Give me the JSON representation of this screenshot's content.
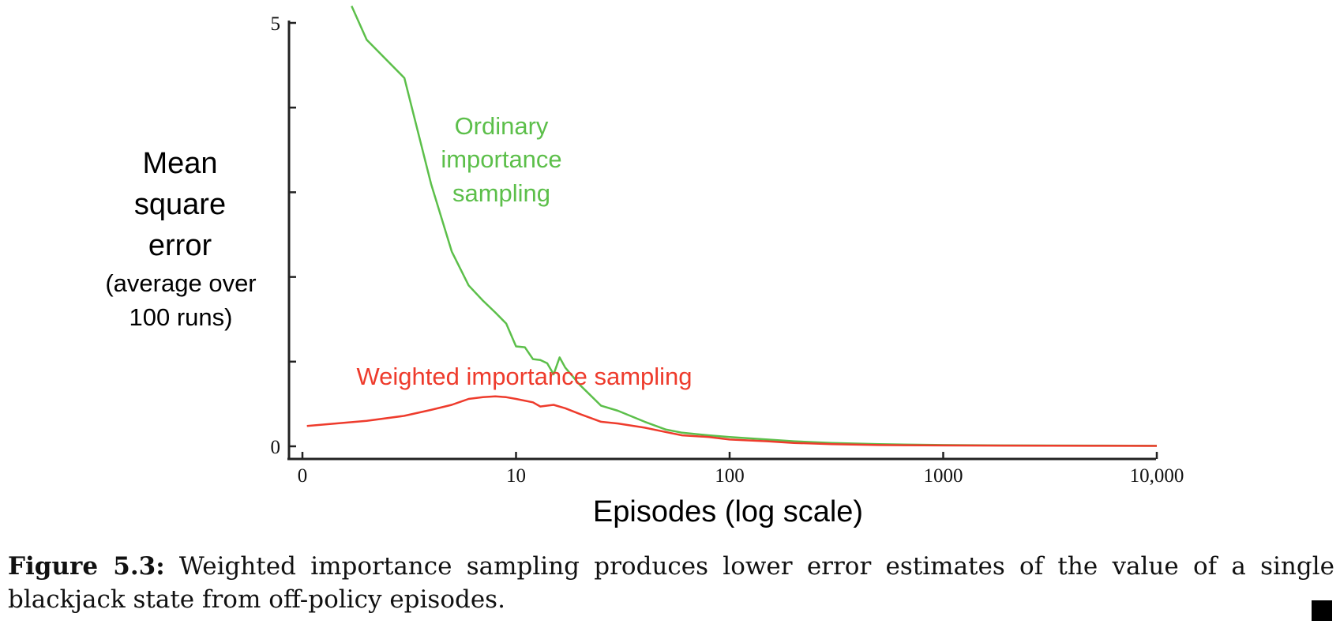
{
  "chart_data": {
    "type": "line",
    "xlabel": "Episodes (log scale)",
    "ylabel_lines": [
      "Mean",
      "square",
      "error"
    ],
    "ylabel_sub_lines": [
      "(average over",
      "100 runs)"
    ],
    "x_scale": "log",
    "x_ticks": [
      1,
      10,
      100,
      1000,
      10000
    ],
    "x_tick_labels": [
      "0",
      "10",
      "100",
      "1000",
      "10,000"
    ],
    "y_ticks": [
      0,
      1,
      2,
      3,
      4,
      5
    ],
    "y_tick_labels": [
      "0",
      "5"
    ],
    "ylim": [
      0,
      5
    ],
    "xlim": [
      1,
      10000
    ],
    "grid": false,
    "series": [
      {
        "name_lines": [
          "Ordinary",
          "importance",
          "sampling"
        ],
        "color": "#5cbf4a",
        "points": [
          [
            1.7,
            5.2
          ],
          [
            2,
            4.8
          ],
          [
            3,
            4.35
          ],
          [
            4,
            3.1
          ],
          [
            5,
            2.3
          ],
          [
            6,
            1.9
          ],
          [
            7,
            1.72
          ],
          [
            8,
            1.58
          ],
          [
            9,
            1.45
          ],
          [
            10,
            1.18
          ],
          [
            11,
            1.17
          ],
          [
            12,
            1.03
          ],
          [
            13,
            1.02
          ],
          [
            14,
            0.98
          ],
          [
            15,
            0.85
          ],
          [
            16,
            1.05
          ],
          [
            17,
            0.93
          ],
          [
            20,
            0.72
          ],
          [
            25,
            0.48
          ],
          [
            30,
            0.42
          ],
          [
            40,
            0.29
          ],
          [
            50,
            0.2
          ],
          [
            60,
            0.16
          ],
          [
            80,
            0.13
          ],
          [
            100,
            0.11
          ],
          [
            150,
            0.08
          ],
          [
            200,
            0.06
          ],
          [
            300,
            0.04
          ],
          [
            500,
            0.025
          ],
          [
            1000,
            0.015
          ],
          [
            2000,
            0.01
          ],
          [
            5000,
            0.008
          ],
          [
            10000,
            0.006
          ]
        ]
      },
      {
        "name": "Weighted importance sampling",
        "color": "#ee3b2c",
        "points": [
          [
            1.05,
            0.24
          ],
          [
            2,
            0.3
          ],
          [
            3,
            0.36
          ],
          [
            4,
            0.43
          ],
          [
            5,
            0.49
          ],
          [
            6,
            0.56
          ],
          [
            7,
            0.58
          ],
          [
            8,
            0.59
          ],
          [
            9,
            0.58
          ],
          [
            10,
            0.56
          ],
          [
            12,
            0.52
          ],
          [
            13,
            0.47
          ],
          [
            14,
            0.48
          ],
          [
            15,
            0.49
          ],
          [
            17,
            0.45
          ],
          [
            20,
            0.38
          ],
          [
            25,
            0.29
          ],
          [
            30,
            0.27
          ],
          [
            40,
            0.22
          ],
          [
            50,
            0.17
          ],
          [
            60,
            0.13
          ],
          [
            80,
            0.11
          ],
          [
            100,
            0.08
          ],
          [
            150,
            0.06
          ],
          [
            200,
            0.04
          ],
          [
            300,
            0.025
          ],
          [
            500,
            0.015
          ],
          [
            1000,
            0.01
          ],
          [
            2000,
            0.008
          ],
          [
            5000,
            0.006
          ],
          [
            10000,
            0.005
          ]
        ]
      }
    ]
  },
  "caption": {
    "label": "Figure 5.3:",
    "text": "Weighted importance sampling produces lower error estimates of the value of a single blackjack state from off-policy episodes."
  }
}
